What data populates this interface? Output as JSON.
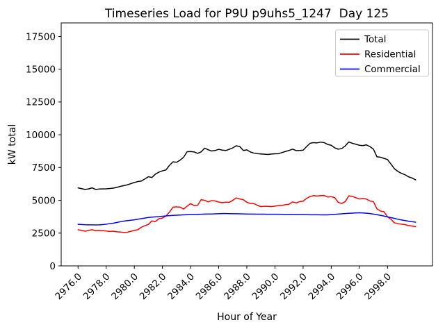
{
  "chart_data": {
    "type": "line",
    "title": "Timeseries Load for P9U p9uhs5_1247  Day 125",
    "xlabel": "Hour of Year",
    "ylabel": "kW total",
    "grid": false,
    "legend_position": "upper right",
    "xlim": [
      2974.8,
      3001.2
    ],
    "ylim": [
      0,
      18530
    ],
    "x_tick_values": [
      2976,
      2978,
      2980,
      2982,
      2984,
      2986,
      2988,
      2990,
      2992,
      2994,
      2996,
      2998
    ],
    "x_tick_labels": [
      "2976.0",
      "2978.0",
      "2980.0",
      "2982.0",
      "2984.0",
      "2986.0",
      "2988.0",
      "2990.0",
      "2992.0",
      "2994.0",
      "2996.0",
      "2998.0"
    ],
    "y_tick_values": [
      0,
      2500,
      5000,
      7500,
      10000,
      12500,
      15000,
      17500
    ],
    "y_tick_labels": [
      "0",
      "2500",
      "5000",
      "7500",
      "10000",
      "12500",
      "15000",
      "17500"
    ],
    "x_start": 2976.0,
    "x_step": 0.25,
    "series": [
      {
        "name": "Total",
        "color": "#000000",
        "values": [
          5950,
          5890,
          5830,
          5870,
          5950,
          5830,
          5860,
          5870,
          5880,
          5900,
          5930,
          5990,
          6060,
          6120,
          6180,
          6270,
          6360,
          6430,
          6470,
          6630,
          6800,
          6740,
          7000,
          7150,
          7250,
          7315,
          7670,
          7935,
          7900,
          8060,
          8280,
          8700,
          8720,
          8690,
          8580,
          8690,
          8980,
          8855,
          8760,
          8800,
          8890,
          8830,
          8800,
          8890,
          9000,
          9160,
          9100,
          8800,
          8850,
          8690,
          8600,
          8560,
          8540,
          8520,
          8500,
          8530,
          8550,
          8560,
          8640,
          8730,
          8800,
          8905,
          8790,
          8800,
          8820,
          9100,
          9350,
          9400,
          9380,
          9440,
          9400,
          9260,
          9200,
          9000,
          8900,
          8950,
          9150,
          9450,
          9350,
          9280,
          9200,
          9170,
          9230,
          9100,
          8905,
          8320,
          8290,
          8200,
          8110,
          7760,
          7400,
          7200,
          7050,
          6950,
          6790,
          6700,
          6560
        ]
      },
      {
        "name": "Residential",
        "color": "#ff0000",
        "values": [
          2760,
          2700,
          2645,
          2700,
          2760,
          2680,
          2700,
          2690,
          2660,
          2630,
          2645,
          2600,
          2580,
          2550,
          2560,
          2640,
          2700,
          2760,
          2950,
          3060,
          3160,
          3430,
          3380,
          3600,
          3650,
          3800,
          4100,
          4480,
          4500,
          4490,
          4330,
          4550,
          4750,
          4600,
          4620,
          5050,
          5000,
          4880,
          4980,
          4950,
          4870,
          4820,
          4860,
          4840,
          5000,
          5180,
          5100,
          5050,
          4850,
          4760,
          4750,
          4620,
          4520,
          4550,
          4540,
          4520,
          4560,
          4600,
          4610,
          4670,
          4700,
          4880,
          4800,
          4900,
          4930,
          5150,
          5290,
          5360,
          5330,
          5360,
          5370,
          5250,
          5280,
          5200,
          4840,
          4760,
          4900,
          5340,
          5300,
          5200,
          5100,
          5140,
          5100,
          4950,
          4900,
          4350,
          4180,
          4135,
          3750,
          3550,
          3280,
          3220,
          3180,
          3150,
          3075,
          3040,
          2990
        ]
      },
      {
        "name": "Commercial",
        "color": "#0000ff",
        "values": [
          3170,
          3155,
          3140,
          3132,
          3128,
          3122,
          3130,
          3150,
          3180,
          3220,
          3255,
          3310,
          3365,
          3415,
          3450,
          3480,
          3512,
          3558,
          3600,
          3648,
          3690,
          3718,
          3740,
          3762,
          3788,
          3812,
          3830,
          3850,
          3865,
          3878,
          3890,
          3903,
          3915,
          3923,
          3930,
          3940,
          3948,
          3955,
          3960,
          3968,
          3978,
          3988,
          3990,
          3986,
          3980,
          3975,
          3970,
          3965,
          3958,
          3953,
          3950,
          3946,
          3944,
          3941,
          3939,
          3938,
          3937,
          3935,
          3933,
          3930,
          3928,
          3924,
          3920,
          3915,
          3910,
          3905,
          3900,
          3898,
          3895,
          3891,
          3889,
          3893,
          3908,
          3928,
          3948,
          3968,
          3988,
          4008,
          4026,
          4040,
          4048,
          4040,
          4020,
          3990,
          3950,
          3905,
          3858,
          3800,
          3740,
          3680,
          3618,
          3558,
          3500,
          3452,
          3408,
          3370,
          3338
        ]
      }
    ]
  }
}
